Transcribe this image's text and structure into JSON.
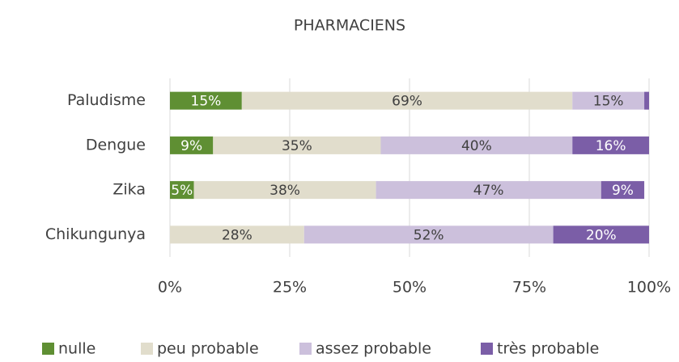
{
  "chart_data": {
    "type": "stacked-bar-horizontal",
    "title": "PHARMACIENS",
    "categories": [
      "Paludisme",
      "Dengue",
      "Zika",
      "Chikungunya"
    ],
    "series": [
      {
        "name": "nulle",
        "color": "#5f8f33",
        "values": [
          15,
          9,
          5,
          0
        ],
        "value_labels": [
          "15%",
          "9%",
          "5%",
          null
        ]
      },
      {
        "name": "peu probable",
        "color": "#e1ddcc",
        "values": [
          69,
          35,
          38,
          28
        ],
        "value_labels": [
          "69%",
          "35%",
          "38%",
          "28%"
        ]
      },
      {
        "name": "assez probable",
        "color": "#ccc0dc",
        "values": [
          15,
          40,
          47,
          52
        ],
        "value_labels": [
          "15%",
          "40%",
          "47%",
          "52%"
        ]
      },
      {
        "name": "très probable",
        "color": "#7b5ea7",
        "values": [
          1,
          16,
          9,
          20
        ],
        "value_labels": [
          null,
          "16%",
          "9%",
          "20%"
        ]
      }
    ],
    "xlim": [
      0,
      100
    ],
    "xticks": [
      {
        "value": 0,
        "label": "0%"
      },
      {
        "value": 25,
        "label": "25%"
      },
      {
        "value": 50,
        "label": "50%"
      },
      {
        "value": 75,
        "label": "75%"
      },
      {
        "value": 100,
        "label": "100%"
      }
    ],
    "grid": true,
    "legend": "bottom"
  }
}
